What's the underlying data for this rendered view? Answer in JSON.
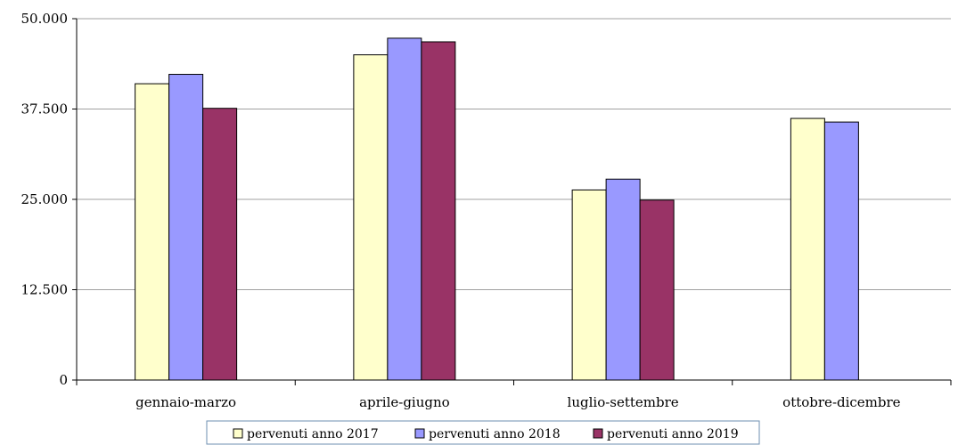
{
  "chart_data": {
    "type": "bar",
    "title": "",
    "xlabel": "",
    "ylabel": "",
    "categories": [
      "gennaio-marzo",
      "aprile-giugno",
      "luglio-settembre",
      "ottobre-dicembre"
    ],
    "series": [
      {
        "name": "pervenuti anno 2017",
        "color": "#FFFFCC",
        "values": [
          41000,
          45000,
          26300,
          36200
        ]
      },
      {
        "name": "pervenuti anno 2018",
        "color": "#9999FF",
        "values": [
          42300,
          47300,
          27800,
          35700
        ]
      },
      {
        "name": "pervenuti anno 2019",
        "color": "#993366",
        "values": [
          37600,
          46800,
          24900,
          null
        ]
      }
    ],
    "ylim": [
      0,
      50000
    ],
    "yticks": [
      0,
      12500,
      25000,
      37500,
      50000
    ],
    "ytick_labels": [
      "0",
      "12.500",
      "25.000",
      "37.500",
      "50.000"
    ],
    "grid": true,
    "legend_position": "bottom-center"
  }
}
